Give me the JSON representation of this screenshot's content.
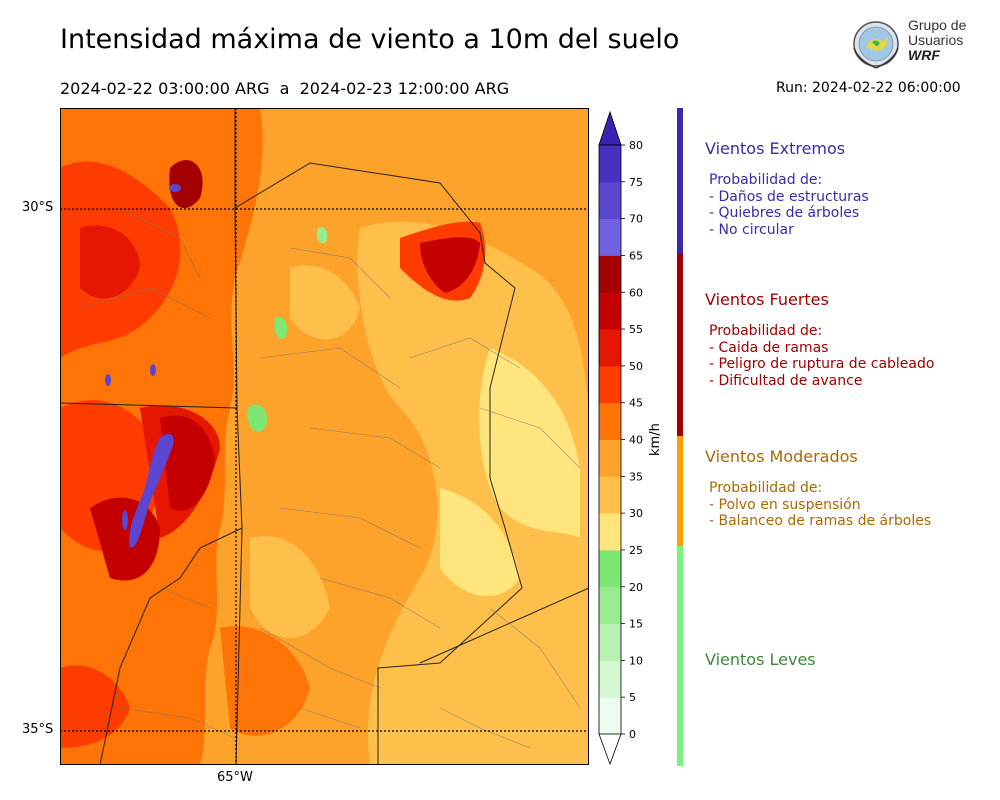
{
  "title": "Intensidad máxima de viento a 10m del suelo",
  "period": "2024-02-22 03:00:00 ARG  a  2024-02-23 12:00:00 ARG",
  "run": "Run: 2024-02-22 06:00:00",
  "logo": {
    "line1": "Grupo de",
    "line2": "Usuarios",
    "line3": "WRF"
  },
  "axes": {
    "lat_labels": [
      "30°S",
      "35°S"
    ],
    "lon_labels": [
      "65°W"
    ]
  },
  "colorbar": {
    "unit": "km/h",
    "ticks": [
      "0",
      "5",
      "10",
      "15",
      "20",
      "25",
      "30",
      "35",
      "40",
      "45",
      "50",
      "55",
      "60",
      "65",
      "70",
      "75",
      "80"
    ],
    "colors": [
      "#eefbee",
      "#d3f7cf",
      "#b8f2b2",
      "#98ec90",
      "#7ce873",
      "#ffe57c",
      "#fec04a",
      "#fda22a",
      "#fe7406",
      "#fe3c00",
      "#e51700",
      "#c50000",
      "#a40000",
      "#7062e0",
      "#5a46d1",
      "#4731c3",
      "#3d20b4"
    ]
  },
  "legend": [
    {
      "title": "Vientos Extremos",
      "color": "#3a2aaa",
      "bar": "#3a2ab2",
      "lines": [
        "Probabilidad de:",
        "- Daños de estructuras",
        "- Quiebres de árboles",
        "- No circular"
      ]
    },
    {
      "title": "Vientos Fuertes",
      "color": "#a00000",
      "bar": "#a40000",
      "lines": [
        "Probabilidad de:",
        "- Caida de ramas",
        "- Peligro de ruptura de cableado",
        "- Dificultad de avance"
      ]
    },
    {
      "title": "Vientos Moderados",
      "color": "#a86a00",
      "bar": "#fd9f00",
      "lines": [
        "Probabilidad de:",
        "- Polvo en suspensión",
        "- Balanceo de ramas de árboles"
      ]
    },
    {
      "title": "Vientos Leves",
      "color": "#3a8a3a",
      "bar": "#7cf07c",
      "lines": []
    }
  ]
}
